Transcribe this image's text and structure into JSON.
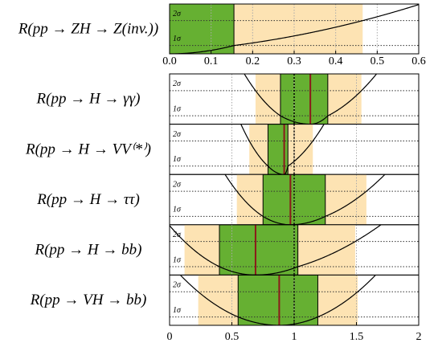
{
  "chart_data": [
    {
      "type": "band",
      "xlim": [
        0,
        0.6
      ],
      "xticks": [
        {
          "value": 0,
          "label": "0.0"
        },
        0.1,
        0.2,
        0.3,
        0.4,
        0.5,
        0.6
      ],
      "ylim": [
        0,
        6
      ],
      "levels": [
        {
          "value": 1,
          "label": "1σ"
        },
        {
          "value": 4,
          "label": "2σ"
        }
      ],
      "one_sigma_color": "#66b032",
      "two_sigma_color": "#fde3b3",
      "panels": [
        {
          "label": "R(pp → ZH → Z(inv.))",
          "one_sigma": [
            0,
            0.155
          ],
          "two_sigma": [
            0,
            0.465
          ]
        }
      ]
    },
    {
      "type": "band",
      "xlim": [
        0,
        2
      ],
      "xticks": [
        0,
        0.5,
        1,
        1.5,
        2
      ],
      "ylim": [
        0,
        6
      ],
      "reference": 1,
      "levels": [
        {
          "value": 1,
          "label": "1σ"
        },
        {
          "value": 4,
          "label": "2σ"
        }
      ],
      "one_sigma_color": "#66b032",
      "two_sigma_color": "#fde3b3",
      "best_color": "#8b1a1a",
      "panels": [
        {
          "label": "R(pp → H → γγ)",
          "best": 1.13,
          "one_sigma": [
            0.89,
            1.27
          ],
          "two_sigma": [
            0.69,
            1.54
          ]
        },
        {
          "label": "R(pp → H → VV⁽*⁾)",
          "best": 0.92,
          "one_sigma": [
            0.79,
            0.95
          ],
          "two_sigma": [
            0.64,
            1.15
          ]
        },
        {
          "label": "R(pp → H → ττ)",
          "best": 0.97,
          "one_sigma": [
            0.75,
            1.25
          ],
          "two_sigma": [
            0.54,
            1.58
          ]
        },
        {
          "label": "R(pp → H → bb)",
          "best": 0.69,
          "one_sigma": [
            0.4,
            1.03
          ],
          "two_sigma": [
            0.12,
            1.49
          ]
        },
        {
          "label": "R(pp → VH → bb)",
          "best": 0.88,
          "one_sigma": [
            0.55,
            1.19
          ],
          "two_sigma": [
            0.23,
            1.51
          ]
        }
      ]
    }
  ]
}
